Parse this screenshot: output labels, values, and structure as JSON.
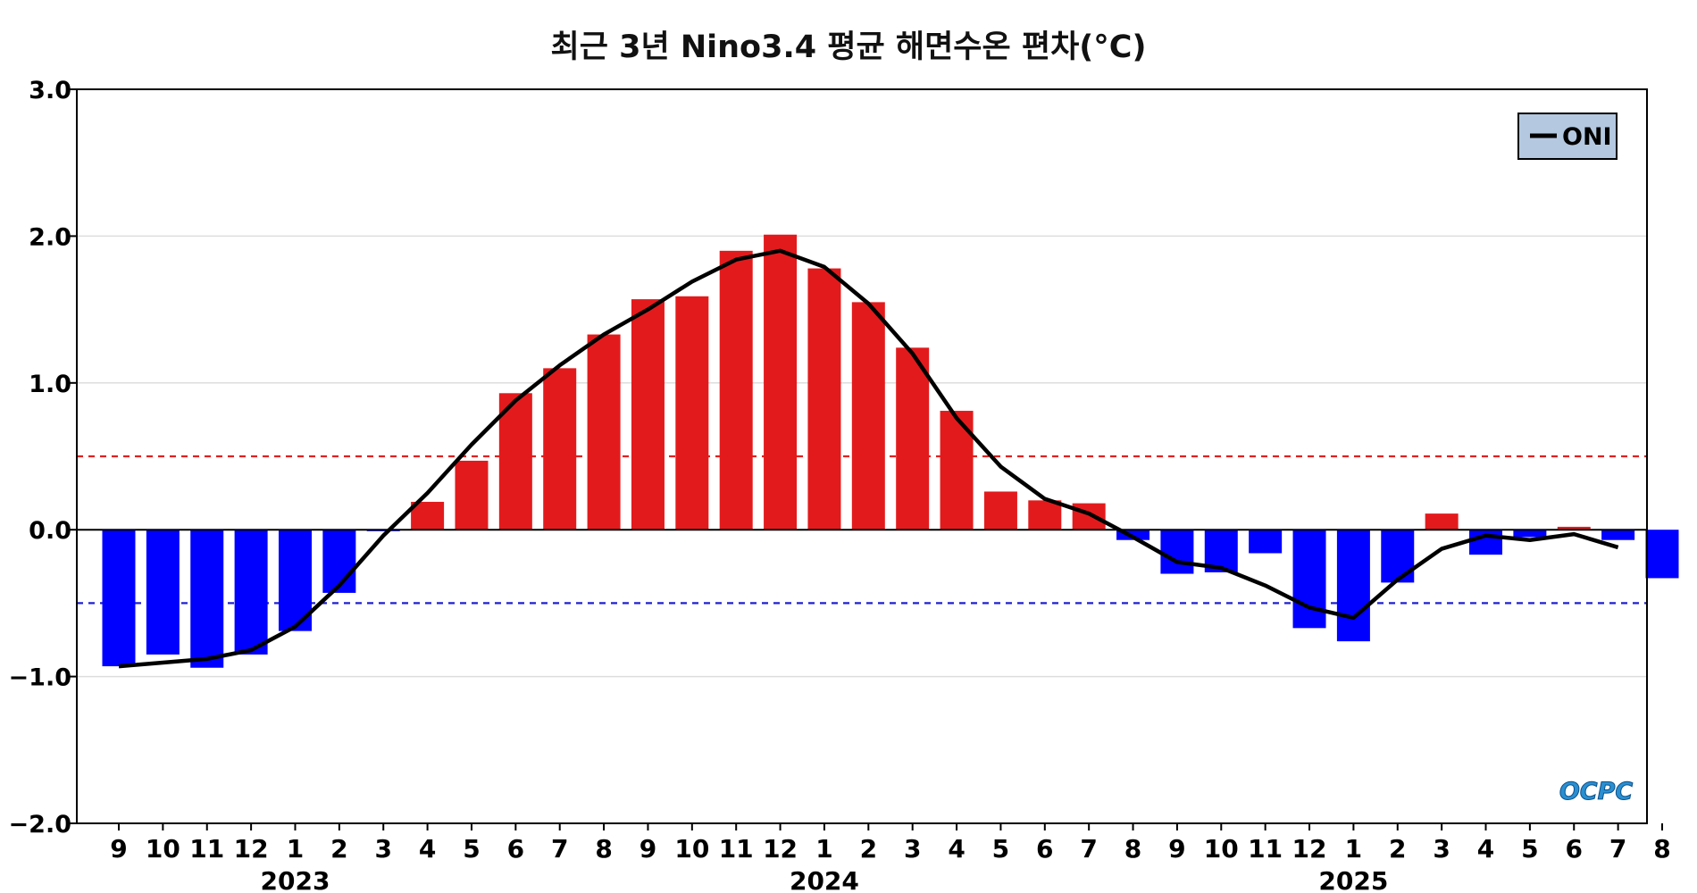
{
  "chart_data": {
    "type": "bar",
    "title": "최근 3년 Nino3.4 평균 해면수온 편차(°C)",
    "categories": [
      "9",
      "10",
      "11",
      "12",
      "1",
      "2",
      "3",
      "4",
      "5",
      "6",
      "7",
      "8",
      "9",
      "10",
      "11",
      "12",
      "1",
      "2",
      "3",
      "4",
      "5",
      "6",
      "7",
      "8",
      "9",
      "10",
      "11",
      "12",
      "1",
      "2",
      "3",
      "4",
      "5",
      "6",
      "7",
      "8"
    ],
    "years": [
      {
        "label": "2023",
        "month_index": 4
      },
      {
        "label": "2024",
        "month_index": 16
      },
      {
        "label": "2025",
        "month_index": 28
      }
    ],
    "series": [
      {
        "kind": "bar",
        "values": [
          -0.93,
          -0.85,
          -0.94,
          -0.85,
          -0.69,
          -0.43,
          -0.01,
          0.19,
          0.47,
          0.93,
          1.1,
          1.33,
          1.57,
          1.59,
          1.9,
          2.01,
          1.78,
          1.55,
          1.24,
          0.81,
          0.26,
          0.2,
          0.18,
          -0.07,
          -0.3,
          -0.29,
          -0.16,
          -0.67,
          -0.76,
          -0.36,
          0.11,
          -0.17,
          -0.05,
          0.02,
          -0.07,
          -0.33
        ]
      },
      {
        "name": "ONI",
        "kind": "line",
        "values": [
          -0.93,
          null,
          -0.88,
          -0.82,
          -0.66,
          -0.38,
          -0.04,
          0.25,
          0.58,
          0.88,
          1.12,
          1.33,
          1.5,
          1.69,
          1.84,
          1.9,
          1.79,
          1.54,
          1.2,
          0.76,
          0.43,
          0.21,
          0.11,
          -0.05,
          -0.22,
          -0.26,
          -0.38,
          -0.53,
          -0.6,
          -0.34,
          -0.13,
          -0.04,
          -0.07,
          -0.03,
          -0.12,
          null
        ]
      }
    ],
    "ylim": [
      -2.0,
      3.0
    ],
    "yticks": [
      {
        "value": 3.0,
        "label": "3.0"
      },
      {
        "value": 2.0,
        "label": "2.0"
      },
      {
        "value": 1.0,
        "label": "1.0"
      },
      {
        "value": 0.0,
        "label": "0.0"
      },
      {
        "value": -1.0,
        "label": "−1.0"
      },
      {
        "value": -2.0,
        "label": "−2.0"
      }
    ],
    "thresholds": [
      {
        "value": 0.5,
        "color": "#e32020"
      },
      {
        "value": -0.5,
        "color": "#2020d0"
      }
    ],
    "grid": true,
    "legend_position": "top-right",
    "legend": {
      "label": "ONI"
    },
    "logo": "OCPC",
    "colors": {
      "positive": "#e31a1c",
      "negative": "#0000ff",
      "line": "#000000",
      "legend_bg": "#b4c8e0",
      "grid": "#dddddd"
    }
  }
}
